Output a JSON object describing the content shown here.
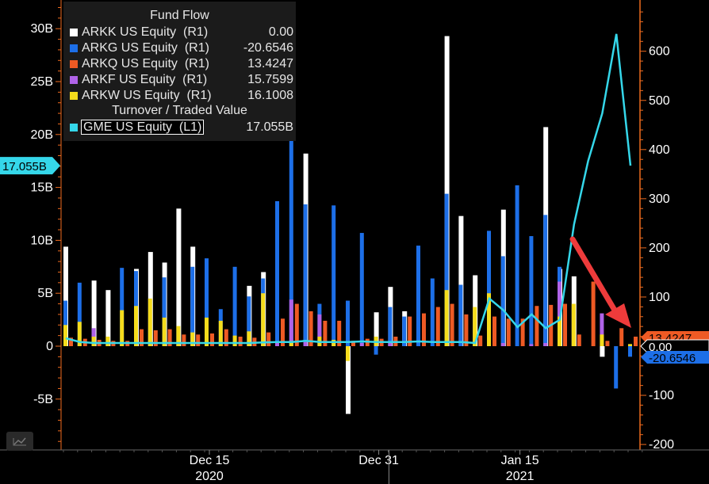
{
  "chart_data": {
    "type": "bar",
    "legend": {
      "title1": "Fund Flow",
      "title2": "Turnover / Traded Value",
      "items": [
        {
          "name": "ARKK US Equity  (R1)",
          "value": "0.00",
          "color": "#ffffff"
        },
        {
          "name": "ARKG US Equity  (R1)",
          "value": "-20.6546",
          "color": "#1d6fe8"
        },
        {
          "name": "ARKQ US Equity  (R1)",
          "value": "13.4247",
          "color": "#ee5a24"
        },
        {
          "name": "ARKF US Equity  (R1)",
          "value": "15.7599",
          "color": "#b063e8"
        },
        {
          "name": "ARKW US Equity  (R1)",
          "value": "16.1008",
          "color": "#f5dc1c"
        }
      ],
      "line_item": {
        "name": "GME US Equity  (L1)",
        "value": "17.055B",
        "color": "#35d7ea"
      }
    },
    "left_axis": {
      "ticks": [
        {
          "v": 30,
          "label": "30B"
        },
        {
          "v": 25,
          "label": "25B"
        },
        {
          "v": 20,
          "label": "20B"
        },
        {
          "v": 15,
          "label": "15B"
        },
        {
          "v": 10,
          "label": "10B"
        },
        {
          "v": 5,
          "label": "5B"
        },
        {
          "v": 0,
          "label": "0"
        },
        {
          "v": -5,
          "label": "-5B"
        }
      ],
      "ylim": [
        -9.5,
        32.8
      ],
      "highlight": {
        "v": 17.055,
        "label": "17.055B"
      }
    },
    "right_axis": {
      "ticks": [
        {
          "v": 600,
          "label": "600"
        },
        {
          "v": 500,
          "label": "500"
        },
        {
          "v": 400,
          "label": "400"
        },
        {
          "v": 300,
          "label": "300"
        },
        {
          "v": 200,
          "label": "200"
        },
        {
          "v": 100,
          "label": "100"
        },
        {
          "v": -100,
          "label": "-100"
        },
        {
          "v": -200,
          "label": "-200"
        }
      ],
      "ylim": [
        -200,
        700
      ],
      "tags": [
        {
          "v": 13.4247,
          "label": "13.4247",
          "color": "#ee5a24",
          "text_color": "#ee5a24"
        },
        {
          "v": 0,
          "label": "0.00",
          "color": "#000000",
          "text_color": "#ffffff",
          "border": "#ffffff"
        },
        {
          "v": -20.6546,
          "label": "-20.6546",
          "color": "#1d6fe8",
          "text_color": "#1d6fe8"
        }
      ]
    },
    "x_axis": {
      "ticks": [
        {
          "i": 10,
          "label": "Dec 15"
        },
        {
          "i": 22,
          "label": "Dec 31"
        },
        {
          "i": 32,
          "label": "Jan 15"
        }
      ],
      "years": [
        {
          "i": 10,
          "label": "2020"
        },
        {
          "i": 32,
          "label": "2021"
        }
      ],
      "year_divider_index": 23
    },
    "series_order": [
      "ARKK",
      "ARKG",
      "ARKQ",
      "ARKF",
      "ARKW"
    ],
    "groups": [
      {
        "ARKK": 9.4,
        "ARKG": 4.3,
        "ARKQ": 0.8,
        "ARKF": 0.3,
        "ARKW": 2.0
      },
      {
        "ARKK": 0,
        "ARKG": 6.0,
        "ARKQ": 0.7,
        "ARKF": 0.2,
        "ARKW": 2.3
      },
      {
        "ARKK": 6.2,
        "ARKG": 0,
        "ARKQ": 0.6,
        "ARKF": 1.7,
        "ARKW": 0.9
      },
      {
        "ARKK": 5.3,
        "ARKG": 0,
        "ARKQ": 0.5,
        "ARKF": 0.3,
        "ARKW": 0.9
      },
      {
        "ARKK": 0,
        "ARKG": 7.4,
        "ARKQ": 0.5,
        "ARKF": 0.4,
        "ARKW": 3.4
      },
      {
        "ARKK": 7.3,
        "ARKG": 7.1,
        "ARKQ": 1.6,
        "ARKF": 0.5,
        "ARKW": 3.8
      },
      {
        "ARKK": 8.9,
        "ARKG": 0,
        "ARKQ": 1.5,
        "ARKF": 0.5,
        "ARKW": 4.5
      },
      {
        "ARKK": 7.9,
        "ARKG": 6.5,
        "ARKQ": 1.6,
        "ARKF": 0.6,
        "ARKW": 2.7
      },
      {
        "ARKK": 13.0,
        "ARKG": 0,
        "ARKQ": 1.1,
        "ARKF": 0.4,
        "ARKW": 1.9
      },
      {
        "ARKK": 9.4,
        "ARKG": 7.5,
        "ARKQ": 1.1,
        "ARKF": 0.3,
        "ARKW": 1.3
      },
      {
        "ARKK": 0,
        "ARKG": 8.3,
        "ARKQ": 1.2,
        "ARKF": 0.4,
        "ARKW": 2.7
      },
      {
        "ARKK": 0,
        "ARKG": 3.5,
        "ARKQ": 1.6,
        "ARKF": 0.4,
        "ARKW": 2.4
      },
      {
        "ARKK": 0,
        "ARKG": 7.5,
        "ARKQ": 0.9,
        "ARKF": 0.3,
        "ARKW": 1.0
      },
      {
        "ARKK": 5.7,
        "ARKG": 4.7,
        "ARKQ": 0.8,
        "ARKF": 0.4,
        "ARKW": 1.4
      },
      {
        "ARKK": 7.0,
        "ARKG": 6.4,
        "ARKQ": 1.3,
        "ARKF": 0.4,
        "ARKW": 5.0
      },
      {
        "ARKK": 0,
        "ARKG": 13.7,
        "ARKQ": 2.6,
        "ARKF": 0.4,
        "ARKW": 0
      },
      {
        "ARKK": 0,
        "ARKG": 19.5,
        "ARKQ": 4.0,
        "ARKF": 4.4,
        "ARKW": 0.5
      },
      {
        "ARKK": 18.2,
        "ARKG": 13.4,
        "ARKQ": 3.3,
        "ARKF": 0.4,
        "ARKW": 0
      },
      {
        "ARKK": 0,
        "ARKG": 4.0,
        "ARKQ": 2.4,
        "ARKF": 3.0,
        "ARKW": 0.9
      },
      {
        "ARKK": 0,
        "ARKG": 13.3,
        "ARKQ": 2.4,
        "ARKF": 0.5,
        "ARKW": 0.6
      },
      {
        "ARKK": -6.4,
        "ARKG": 4.3,
        "ARKQ": 0.5,
        "ARKF": 0,
        "ARKW": -1.4
      },
      {
        "ARKK": 0,
        "ARKG": 10.7,
        "ARKQ": 0.7,
        "ARKF": 0.3,
        "ARKW": 0
      },
      {
        "ARKK": 3.2,
        "ARKG": -0.8,
        "ARKQ": 0.7,
        "ARKF": 0.4,
        "ARKW": 0.9
      },
      {
        "ARKK": 5.6,
        "ARKG": 3.7,
        "ARKQ": 0.9,
        "ARKF": 0.3,
        "ARKW": 0
      },
      {
        "ARKK": 3.3,
        "ARKG": 2.8,
        "ARKQ": 2.8,
        "ARKF": 0,
        "ARKW": 0
      },
      {
        "ARKK": 0,
        "ARKG": 9.5,
        "ARKQ": 3.1,
        "ARKF": 0,
        "ARKW": 0
      },
      {
        "ARKK": 0,
        "ARKG": 6.4,
        "ARKQ": 3.7,
        "ARKF": 0,
        "ARKW": 0
      },
      {
        "ARKK": 29.3,
        "ARKG": 14.4,
        "ARKQ": 4.0,
        "ARKF": 0,
        "ARKW": 5.3
      },
      {
        "ARKK": 12.3,
        "ARKG": 5.8,
        "ARKQ": 3.0,
        "ARKF": 0,
        "ARKW": 0
      },
      {
        "ARKK": 6.7,
        "ARKG": 0,
        "ARKQ": 1.0,
        "ARKF": 0,
        "ARKW": 3.7
      },
      {
        "ARKK": 0,
        "ARKG": 10.9,
        "ARKQ": 2.8,
        "ARKF": 0.2,
        "ARKW": 5.0
      },
      {
        "ARKK": 12.9,
        "ARKG": 8.5,
        "ARKQ": 2.6,
        "ARKF": 0.3,
        "ARKW": 0
      },
      {
        "ARKK": 0,
        "ARKG": 15.2,
        "ARKQ": 2.6,
        "ARKF": 0,
        "ARKW": 0
      },
      {
        "ARKK": 0,
        "ARKG": 10.4,
        "ARKQ": 3.8,
        "ARKF": 0.2,
        "ARKW": 0
      },
      {
        "ARKK": 20.7,
        "ARKG": 12.4,
        "ARKQ": 3.9,
        "ARKF": 0.3,
        "ARKW": 0
      },
      {
        "ARKK": 7.3,
        "ARKG": 7.5,
        "ARKQ": 4.0,
        "ARKF": 6.1,
        "ARKW": 2.8
      },
      {
        "ARKK": 6.6,
        "ARKG": 0,
        "ARKQ": 1.1,
        "ARKF": 0,
        "ARKW": 4.0
      },
      {
        "ARKK": 0,
        "ARKG": 0,
        "ARKQ": 6.1,
        "ARKF": 0,
        "ARKW": 0
      },
      {
        "ARKK": -1.0,
        "ARKG": 0,
        "ARKQ": 0.5,
        "ARKF": 3.1,
        "ARKW": 1.1
      },
      {
        "ARKK": 0,
        "ARKG": -4.0,
        "ARKQ": 1.7,
        "ARKF": 0,
        "ARKW": 0
      },
      {
        "ARKK": 0,
        "ARKG": -1.0,
        "ARKQ": 0.9,
        "ARKF": 0,
        "ARKW": 0.2
      }
    ],
    "gme_line": [
      0.75,
      0.4,
      0.3,
      0.3,
      0.3,
      0.3,
      0.3,
      0.3,
      0.3,
      0.3,
      0.3,
      0.3,
      0.3,
      0.3,
      0.35,
      0.4,
      0.4,
      0.5,
      0.4,
      0.4,
      0.4,
      0.45,
      0.4,
      0.4,
      0.4,
      0.45,
      0.4,
      0.4,
      0.4,
      0.3,
      4.5,
      3.4,
      1.8,
      3.0,
      1.7,
      2.5,
      11.5,
      17.5,
      22.0,
      29.5,
      17.055
    ],
    "gme_line_start_index": 0,
    "annotation": {
      "type": "arrow",
      "color": "#ee3b3b"
    }
  }
}
